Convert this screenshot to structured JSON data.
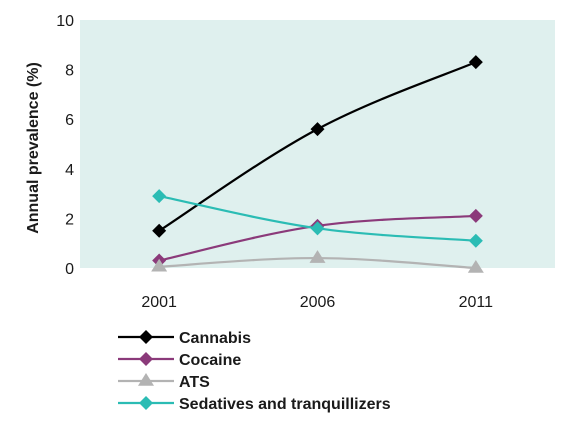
{
  "chart_data": {
    "type": "line",
    "x": [
      "2001",
      "2006",
      "2011"
    ],
    "ylabel": "Annual prevalence (%)",
    "xlabel": "",
    "ylim": [
      0,
      10
    ],
    "yticks": [
      0,
      2,
      4,
      6,
      8,
      10
    ],
    "grid": false,
    "plot_background": "#dff0ee",
    "legend_position": "bottom-left",
    "series": [
      {
        "name": "Cannabis",
        "values": [
          1.5,
          5.6,
          8.3
        ],
        "color": "#000000",
        "marker": "diamond"
      },
      {
        "name": "Cocaine",
        "values": [
          0.3,
          1.7,
          2.1
        ],
        "color": "#8b3a7a",
        "marker": "diamond"
      },
      {
        "name": "ATS",
        "values": [
          0.05,
          0.4,
          0.0
        ],
        "color": "#b3b3b3",
        "marker": "triangle"
      },
      {
        "name": "Sedatives and tranquillizers",
        "values": [
          2.9,
          1.6,
          1.1
        ],
        "color": "#2bbcb4",
        "marker": "diamond"
      }
    ]
  }
}
